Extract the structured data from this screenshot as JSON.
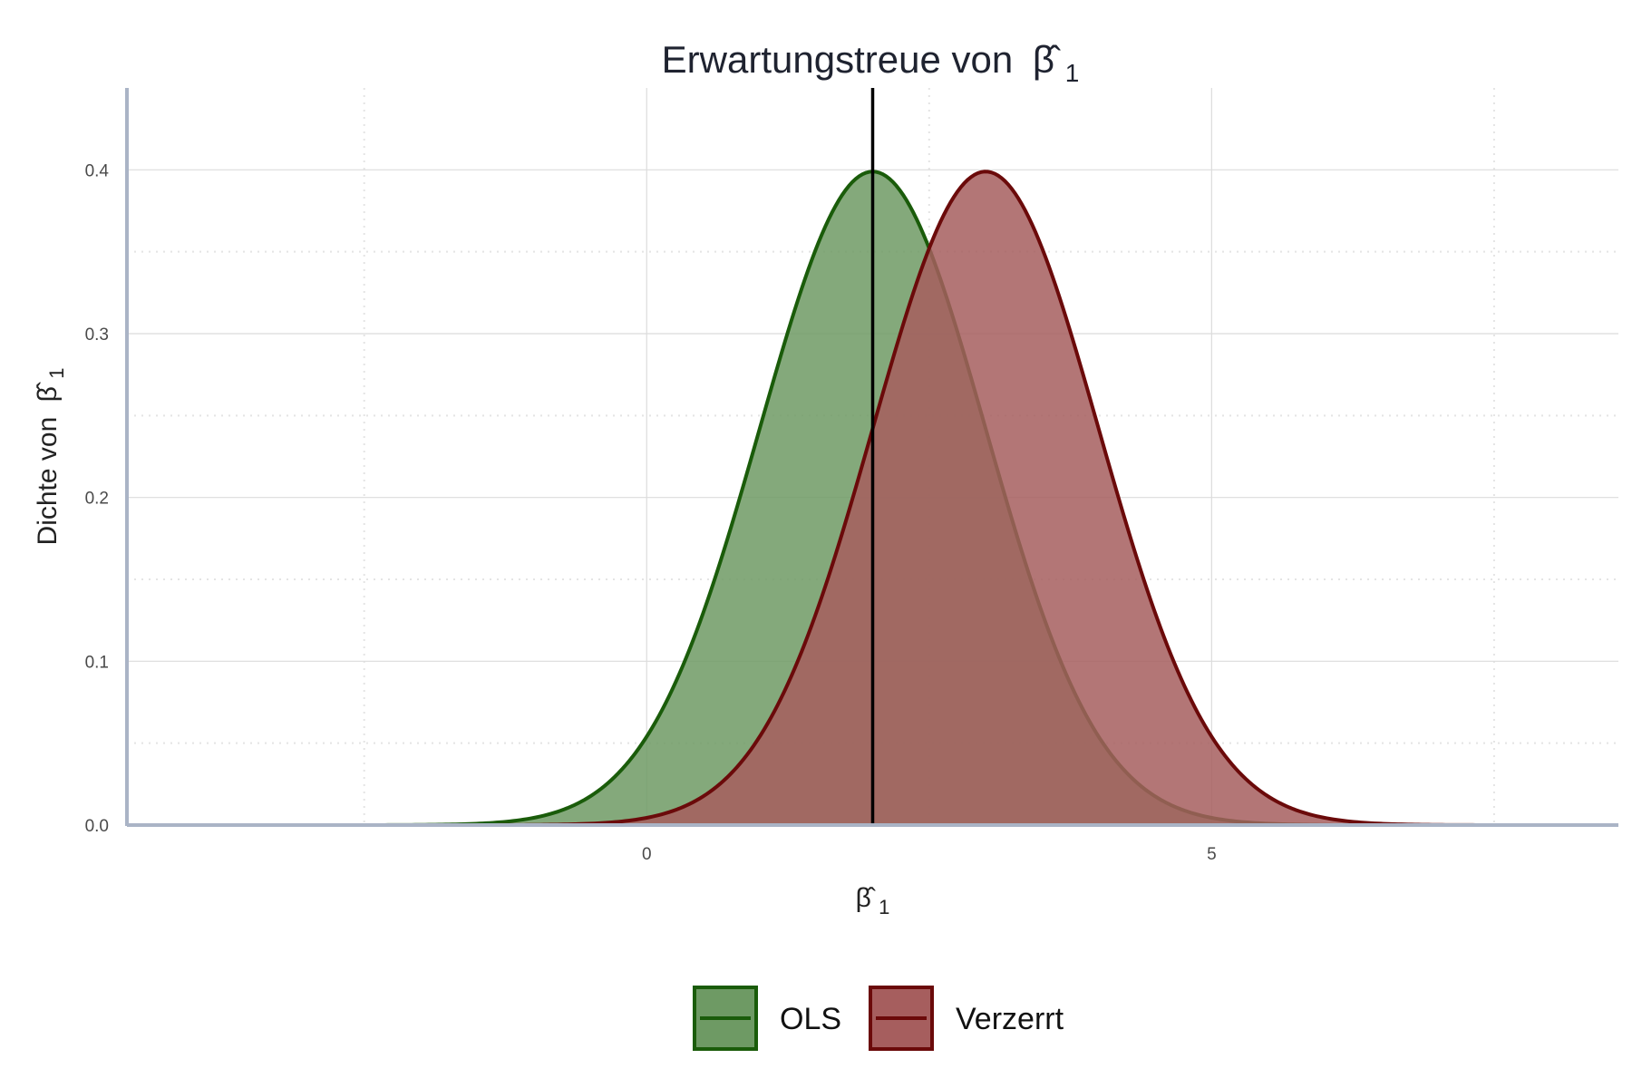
{
  "colors": {
    "ols": "#1a5c0a",
    "ols_fill": "#6e9a64",
    "biased": "#6b0a0a",
    "biased_fill": "#a65e5e",
    "axis": "#aab4c6",
    "grid_major": "#dcdcdc",
    "grid_minor": "#e4e4e4",
    "vline": "#000000"
  },
  "chart_data": {
    "type": "area",
    "title": "Erwartungstreue von",
    "title_symbol": "β̂",
    "title_subscript": "1",
    "xlabel_symbol": "β̂",
    "xlabel_subscript": "1",
    "ylabel": "Dichte von",
    "ylabel_symbol": "β̂",
    "ylabel_subscript": "1",
    "xlim": [
      -4.6,
      8.6
    ],
    "ylim": [
      0,
      0.45
    ],
    "x_domain": [
      -4,
      8
    ],
    "x_ticks": [
      0,
      5
    ],
    "x_tick_labels": [
      "0",
      "5"
    ],
    "x_minor_gridlines": [
      -2.5,
      2.5,
      7.5
    ],
    "y_ticks": [
      0,
      0.1,
      0.2,
      0.3,
      0.4
    ],
    "y_tick_labels": [
      "0.0",
      "0.1",
      "0.2",
      "0.3",
      "0.4"
    ],
    "y_minor_gridlines": [
      0.05,
      0.15,
      0.25,
      0.35
    ],
    "vline_x": 2,
    "series": [
      {
        "name": "OLS",
        "distribution": "normal",
        "mean": 2,
        "sd": 1
      },
      {
        "name": "Verzerrt",
        "distribution": "normal",
        "mean": 3,
        "sd": 1
      }
    ],
    "legend": {
      "position": "bottom",
      "entries": [
        "OLS",
        "Verzerrt"
      ]
    }
  }
}
